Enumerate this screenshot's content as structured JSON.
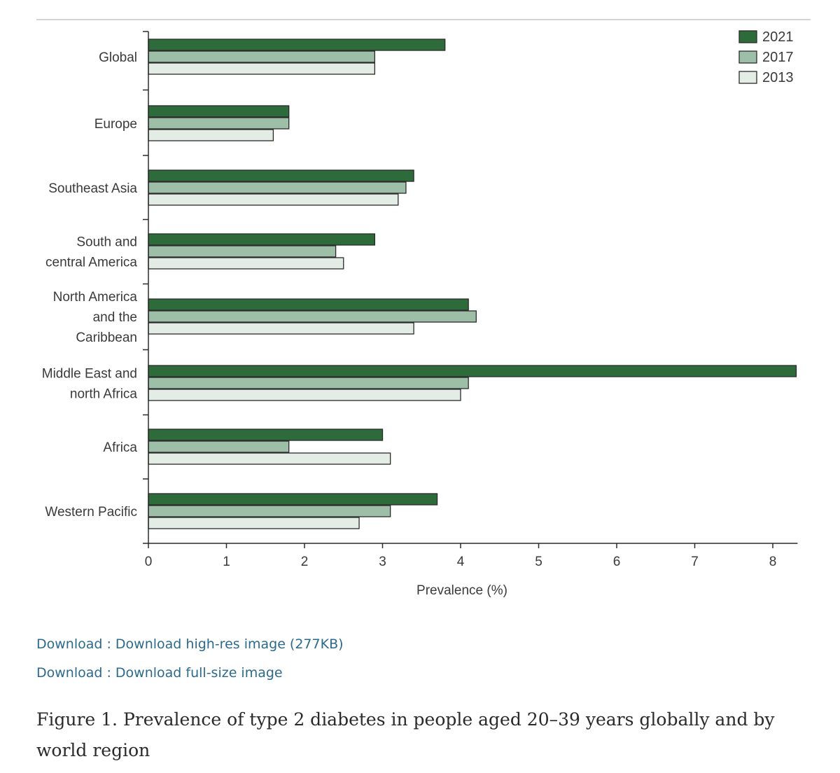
{
  "chart_data": {
    "type": "bar",
    "orientation": "horizontal",
    "categories": [
      "Global",
      "Europe",
      "Southeast Asia",
      "South and\ncentral America",
      "North America\nand the\nCaribbean",
      "Middle East and\nnorth Africa",
      "Africa",
      "Western Pacific"
    ],
    "series": [
      {
        "name": "2021",
        "color": "#2e6b3b",
        "values": [
          3.8,
          1.8,
          3.4,
          2.9,
          4.1,
          8.3,
          3.0,
          3.7
        ]
      },
      {
        "name": "2017",
        "color": "#9dbfa8",
        "values": [
          2.9,
          1.8,
          3.3,
          2.4,
          4.2,
          4.1,
          1.8,
          3.1
        ]
      },
      {
        "name": "2013",
        "color": "#e3ede6",
        "values": [
          2.9,
          1.6,
          3.2,
          2.5,
          3.4,
          4.0,
          3.1,
          2.7
        ]
      }
    ],
    "xlabel": "Prevalence (%)",
    "ylabel": "",
    "xlim": [
      0,
      8.3
    ],
    "xticks": [
      0,
      1,
      2,
      3,
      4,
      5,
      6,
      7,
      8
    ],
    "grid": false,
    "legend": "top-right"
  },
  "links": [
    {
      "label": "Download : Download high-res image (277KB)"
    },
    {
      "label": "Download : Download full-size image"
    }
  ],
  "caption": "Figure 1. Prevalence of type 2 diabetes in people aged 20–39 years globally and by world region"
}
